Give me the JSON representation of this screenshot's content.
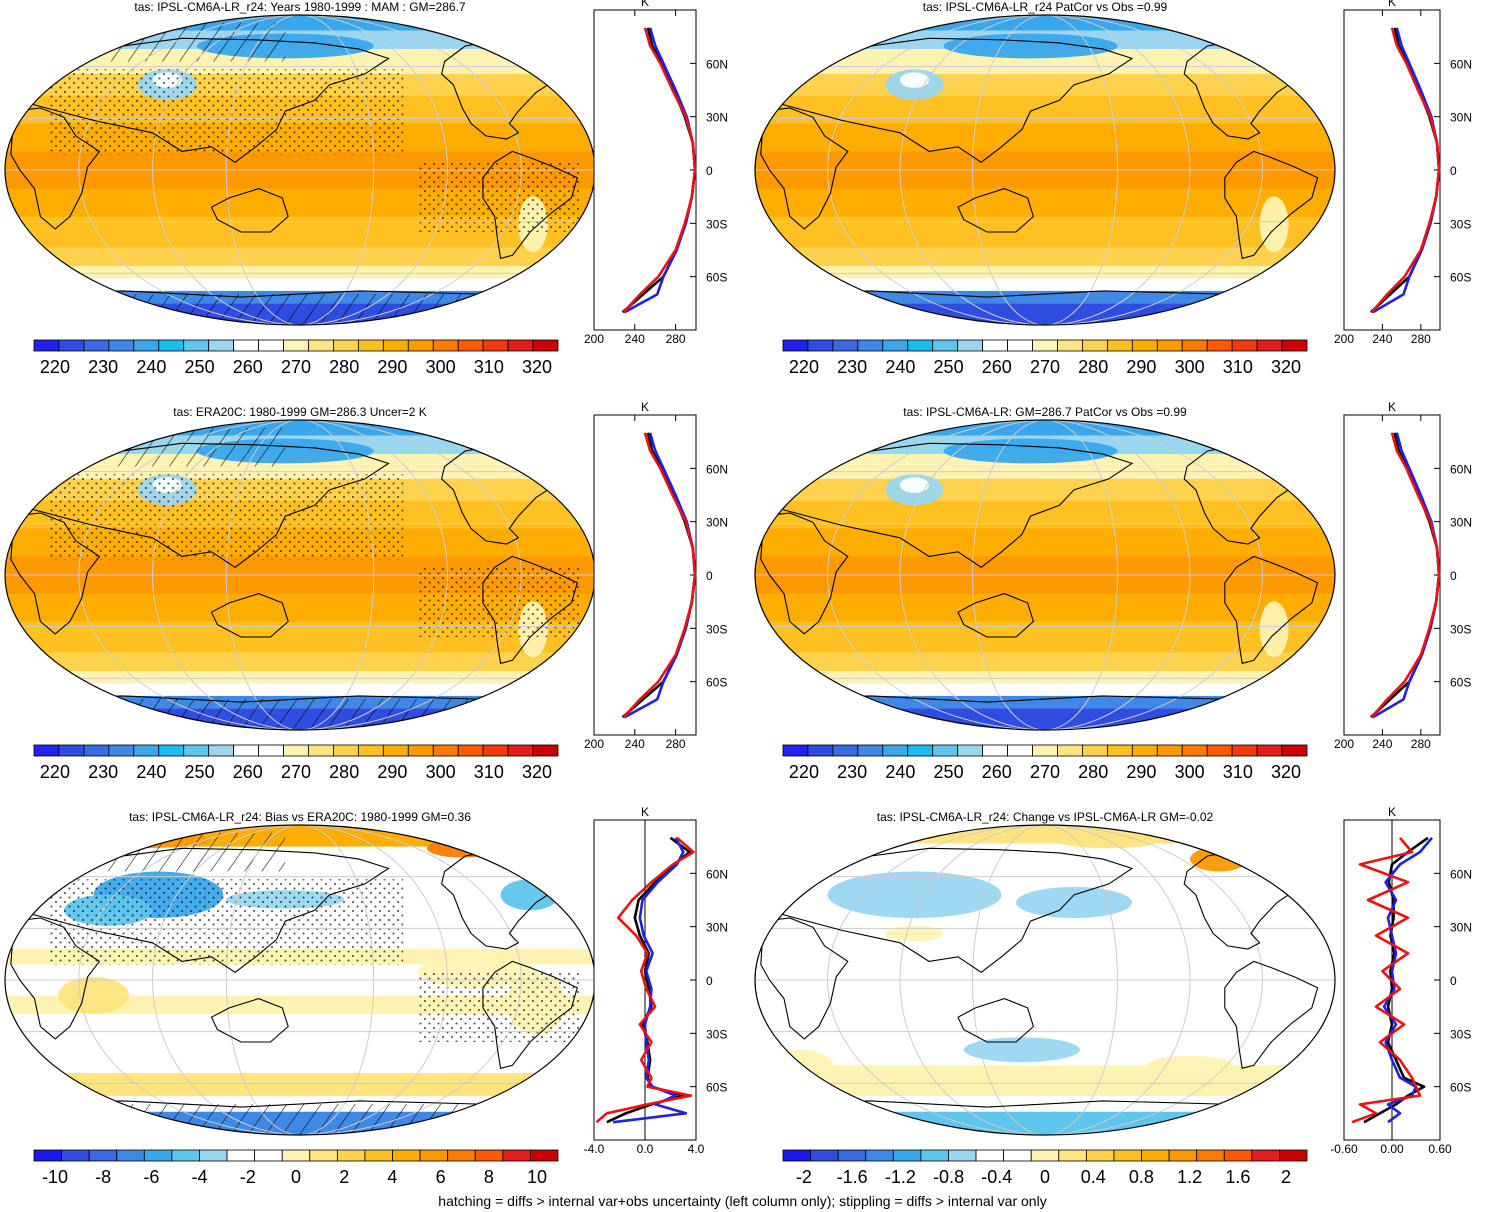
{
  "palettes": {
    "abs": [
      "#2222ee",
      "#2f4de0",
      "#3a6ae0",
      "#3f88e6",
      "#3aa6ec",
      "#1bbcf0",
      "#5ec5ec",
      "#9ad6f0",
      "#ffffff",
      "#ffffff",
      "#fff3b3",
      "#ffe480",
      "#ffd24d",
      "#ffc021",
      "#ffad00",
      "#ff9900",
      "#ff7a00",
      "#ff5a00",
      "#f33a0a",
      "#e41c1c",
      "#cc0000"
    ],
    "bias": [
      "#1a1aee",
      "#2f4de0",
      "#3a6ae0",
      "#3f88e6",
      "#3aa6ec",
      "#5ec5ec",
      "#9ad6f0",
      "#ffffff",
      "#ffffff",
      "#fff3b3",
      "#ffe480",
      "#ffd24d",
      "#ffc021",
      "#ffad00",
      "#ff9900",
      "#ff7a00",
      "#ff5a00",
      "#e41c1c",
      "#cc0000"
    ],
    "change": [
      "#1a1aee",
      "#2f4de0",
      "#3a6ae0",
      "#3f88e6",
      "#3aa6ec",
      "#5ec5ec",
      "#9ad6f0",
      "#ffffff",
      "#ffffff",
      "#fff3b3",
      "#ffe480",
      "#ffd24d",
      "#ffc021",
      "#ffad00",
      "#ff9900",
      "#ff7a00",
      "#ff5a00",
      "#e41c1c",
      "#cc0000"
    ]
  },
  "colorbar_labels": {
    "abs": [
      "220",
      "230",
      "240",
      "250",
      "260",
      "270",
      "280",
      "290",
      "300",
      "310",
      "320"
    ],
    "bias": [
      "-10",
      "-8",
      "-6",
      "-4",
      "-2",
      "0",
      "2",
      "4",
      "6",
      "8",
      "10"
    ],
    "change": [
      "-2",
      "-1.6",
      "-1.2",
      "-0.8",
      "-0.4",
      "0",
      "0.4",
      "0.8",
      "1.2",
      "1.6",
      "2"
    ]
  },
  "lat_labels": [
    "60N",
    "30N",
    "0",
    "30S",
    "60S"
  ],
  "footnote": "hatching = diffs > internal var+obs uncertainty (left column only); stippling = diffs > internal var only",
  "chart_data": [
    {
      "type": "heatmap",
      "title": "tas: IPSL-CM6A-LR_r24: Years 1980-1999 : MAM : GM=286.7",
      "field": "abs",
      "colorbar": "abs",
      "hatched": true,
      "profile": {
        "unit": "K",
        "xlim": [
          200,
          300
        ],
        "xticks": [
          "200",
          "240",
          "280"
        ],
        "lat": [
          -80,
          -70,
          -60,
          -45,
          -30,
          -15,
          0,
          15,
          30,
          45,
          60,
          70,
          80
        ],
        "series": [
          {
            "color": "#000000",
            "values": [
              228,
              248,
              268,
              281,
              290,
              296,
              299,
              297,
              289,
              278,
              266,
              257,
              253
            ]
          },
          {
            "color": "#1f1fe6",
            "values": [
              230,
              262,
              268,
              281,
              290,
              296,
              299,
              297,
              291,
              280,
              268,
              260,
              255
            ]
          },
          {
            "color": "#ee1111",
            "values": [
              229,
              245,
              263,
              280,
              289,
              296,
              299,
              297,
              290,
              277,
              265,
              255,
              250
            ]
          }
        ]
      }
    },
    {
      "type": "heatmap",
      "title": "tas: IPSL-CM6A-LR_r24 PatCor vs Obs =0.99",
      "field": "abs",
      "colorbar": "abs",
      "hatched": false,
      "profile": {
        "unit": "K",
        "xlim": [
          200,
          300
        ],
        "xticks": [
          "200",
          "240",
          "280"
        ],
        "lat": [
          -80,
          -70,
          -60,
          -45,
          -30,
          -15,
          0,
          15,
          30,
          45,
          60,
          70,
          80
        ],
        "series": [
          {
            "color": "#000000",
            "values": [
              228,
              248,
              268,
              281,
              290,
              296,
              299,
              297,
              289,
              278,
              266,
              257,
              253
            ]
          },
          {
            "color": "#1f1fe6",
            "values": [
              230,
              262,
              268,
              281,
              290,
              296,
              299,
              297,
              291,
              280,
              268,
              260,
              255
            ]
          },
          {
            "color": "#ee1111",
            "values": [
              229,
              245,
              263,
              280,
              289,
              296,
              299,
              297,
              290,
              277,
              265,
              255,
              250
            ]
          }
        ]
      }
    },
    {
      "type": "heatmap",
      "title": "tas: ERA20C: 1980-1999 GM=286.3 Uncer=2 K",
      "field": "abs",
      "colorbar": "abs",
      "hatched": true,
      "profile": {
        "unit": "K",
        "xlim": [
          200,
          300
        ],
        "xticks": [
          "200",
          "240",
          "280"
        ],
        "lat": [
          -80,
          -70,
          -60,
          -45,
          -30,
          -15,
          0,
          15,
          30,
          45,
          60,
          70,
          80
        ],
        "series": [
          {
            "color": "#000000",
            "values": [
              228,
              248,
              268,
              281,
              290,
              296,
              299,
              297,
              289,
              278,
              266,
              257,
              253
            ]
          },
          {
            "color": "#1f1fe6",
            "values": [
              230,
              262,
              268,
              281,
              290,
              296,
              299,
              297,
              291,
              280,
              268,
              260,
              255
            ]
          },
          {
            "color": "#ee1111",
            "values": [
              229,
              245,
              263,
              280,
              289,
              296,
              299,
              297,
              290,
              277,
              265,
              255,
              250
            ]
          }
        ]
      }
    },
    {
      "type": "heatmap",
      "title": "tas: IPSL-CM6A-LR: GM=286.7 PatCor vs Obs =0.99",
      "field": "abs",
      "colorbar": "abs",
      "hatched": false,
      "profile": {
        "unit": "K",
        "xlim": [
          200,
          300
        ],
        "xticks": [
          "200",
          "240",
          "280"
        ],
        "lat": [
          -80,
          -70,
          -60,
          -45,
          -30,
          -15,
          0,
          15,
          30,
          45,
          60,
          70,
          80
        ],
        "series": [
          {
            "color": "#000000",
            "values": [
              228,
              248,
              268,
              281,
              290,
              296,
              299,
              297,
              289,
              278,
              266,
              257,
              253
            ]
          },
          {
            "color": "#1f1fe6",
            "values": [
              230,
              262,
              268,
              281,
              290,
              296,
              299,
              297,
              291,
              280,
              268,
              260,
              255
            ]
          },
          {
            "color": "#ee1111",
            "values": [
              229,
              245,
              263,
              280,
              289,
              296,
              299,
              297,
              290,
              277,
              265,
              255,
              250
            ]
          }
        ]
      }
    },
    {
      "type": "heatmap",
      "title": "tas: IPSL-CM6A-LR_r24: Bias vs ERA20C: 1980-1999 GM=0.36",
      "field": "bias",
      "colorbar": "bias",
      "hatched": true,
      "profile": {
        "unit": "K",
        "xlim": [
          -4,
          4
        ],
        "xticks": [
          "-4.0",
          "0.0",
          "4.0"
        ],
        "lat": [
          -80,
          -75,
          -70,
          -65,
          -60,
          -55,
          -45,
          -35,
          -25,
          -15,
          -5,
          5,
          15,
          25,
          35,
          45,
          55,
          65,
          72,
          80
        ],
        "series": [
          {
            "color": "#000000",
            "values": [
              -3.0,
              -1.5,
              0.5,
              3.0,
              0.5,
              0.2,
              0.4,
              0.2,
              -0.2,
              0.5,
              0.3,
              0.0,
              0.3,
              -0.4,
              -0.8,
              -0.5,
              0.8,
              2.3,
              3.5,
              2.0
            ]
          },
          {
            "color": "#1f1fe6",
            "values": [
              -2.5,
              3.2,
              0.8,
              2.4,
              0.6,
              0.1,
              0.3,
              0.1,
              0.0,
              0.4,
              0.5,
              0.1,
              0.6,
              -0.1,
              -0.4,
              -0.2,
              1.0,
              2.5,
              3.0,
              2.4
            ]
          },
          {
            "color": "#ee1111",
            "values": [
              -3.8,
              -3.0,
              0.2,
              3.6,
              0.2,
              0.5,
              -0.3,
              0.5,
              -0.4,
              0.8,
              0.1,
              -0.3,
              0.2,
              -0.7,
              -2.1,
              -1.0,
              0.5,
              2.2,
              3.8,
              2.5
            ]
          }
        ]
      }
    },
    {
      "type": "heatmap",
      "title": "tas: IPSL-CM6A-LR_r24: Change vs IPSL-CM6A-LR GM=-0.02",
      "field": "change",
      "colorbar": "change",
      "hatched": false,
      "profile": {
        "unit": "K",
        "xlim": [
          -0.6,
          0.6
        ],
        "xticks": [
          "-0.60",
          "0.00",
          "0.60"
        ],
        "lat": [
          -80,
          -75,
          -70,
          -65,
          -60,
          -55,
          -45,
          -35,
          -25,
          -15,
          -5,
          5,
          15,
          25,
          35,
          45,
          55,
          65,
          72,
          80
        ],
        "series": [
          {
            "color": "#000000",
            "values": [
              -0.35,
              -0.15,
              0.05,
              0.2,
              0.4,
              0.15,
              0.05,
              -0.05,
              0.0,
              -0.05,
              0.0,
              -0.02,
              0.03,
              -0.02,
              0.02,
              0.02,
              -0.04,
              0.0,
              0.2,
              0.45
            ]
          },
          {
            "color": "#1f1fe6",
            "values": [
              -0.05,
              0.1,
              -0.05,
              0.25,
              0.3,
              0.1,
              0.0,
              -0.08,
              0.05,
              -0.1,
              0.03,
              0.0,
              0.05,
              0.0,
              -0.05,
              0.05,
              -0.08,
              0.1,
              0.35,
              0.5
            ]
          },
          {
            "color": "#ee1111",
            "values": [
              -0.5,
              -0.2,
              -0.4,
              0.35,
              0.3,
              0.25,
              0.1,
              -0.15,
              0.15,
              -0.2,
              0.1,
              -0.12,
              0.2,
              -0.2,
              0.2,
              -0.3,
              0.2,
              -0.4,
              0.25,
              0.1
            ]
          }
        ]
      }
    }
  ]
}
